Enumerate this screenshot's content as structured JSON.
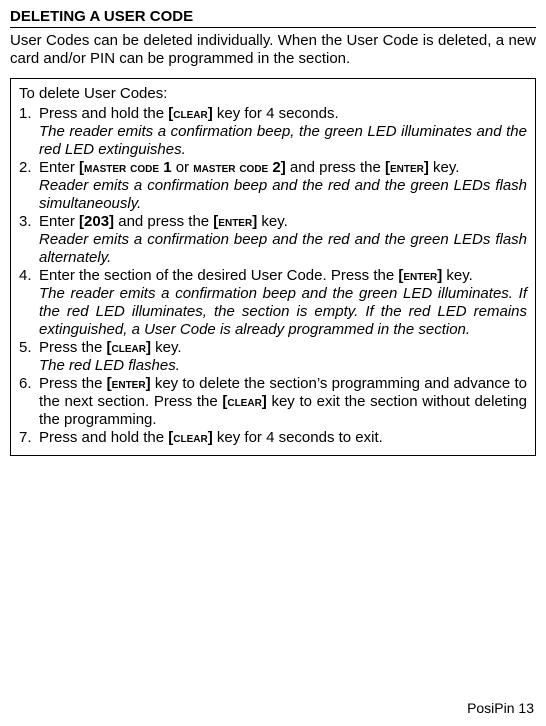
{
  "heading": "DELETING A USER CODE",
  "intro": "User Codes can be deleted individually. When the User Code is deleted, a new card and/or PIN can be programmed in the section.",
  "box": {
    "label": "To delete User Codes:",
    "steps": [
      {
        "num": "1.",
        "line_pre": "Press and hold the ",
        "key1": "[CLEAR]",
        "line_post": " key for 4 seconds.",
        "result": "The reader emits a confirmation beep, the green LED illuminates and the red LED extinguishes."
      },
      {
        "num": "2.",
        "line_pre": "Enter ",
        "key1": "[MASTER CODE 1",
        "mid": " or ",
        "key2": "MASTER CODE 2]",
        "line_mid": " and press the ",
        "key3": "[ENTER]",
        "line_post": " key.",
        "result": "Reader emits a confirmation beep and the red and the green LEDs flash simultaneously."
      },
      {
        "num": "3.",
        "line_pre": "Enter ",
        "key1": "[203]",
        "line_mid": " and press the ",
        "key2": "[ENTER]",
        "line_post": " key.",
        "result": "Reader emits a confirmation beep and the red and the green LEDs flash alternately."
      },
      {
        "num": "4.",
        "line_pre": "Enter the section of the desired User Code. Press the ",
        "key1": "[ENTER]",
        "line_post": " key.",
        "result": "The reader emits a confirmation beep and the green LED illuminates. If the red LED illuminates, the section is empty. If the red LED remains extinguished, a User Code is already programmed in the section."
      },
      {
        "num": "5.",
        "line_pre": "Press the ",
        "key1": "[CLEAR]",
        "line_post": " key.",
        "result": "The red LED flashes."
      },
      {
        "num": "6.",
        "line_pre": "Press the ",
        "key1": "[ENTER]",
        "line_mid": " key to delete the section’s programming and advance to the next section. Press the ",
        "key2": "[CLEAR]",
        "line_post": " key to exit the section without deleting the programming."
      },
      {
        "num": "7.",
        "line_pre": "Press and hold the ",
        "key1": "[CLEAR]",
        "line_post": " key for 4 seconds to exit."
      }
    ]
  },
  "footer": "PosiPin 13"
}
